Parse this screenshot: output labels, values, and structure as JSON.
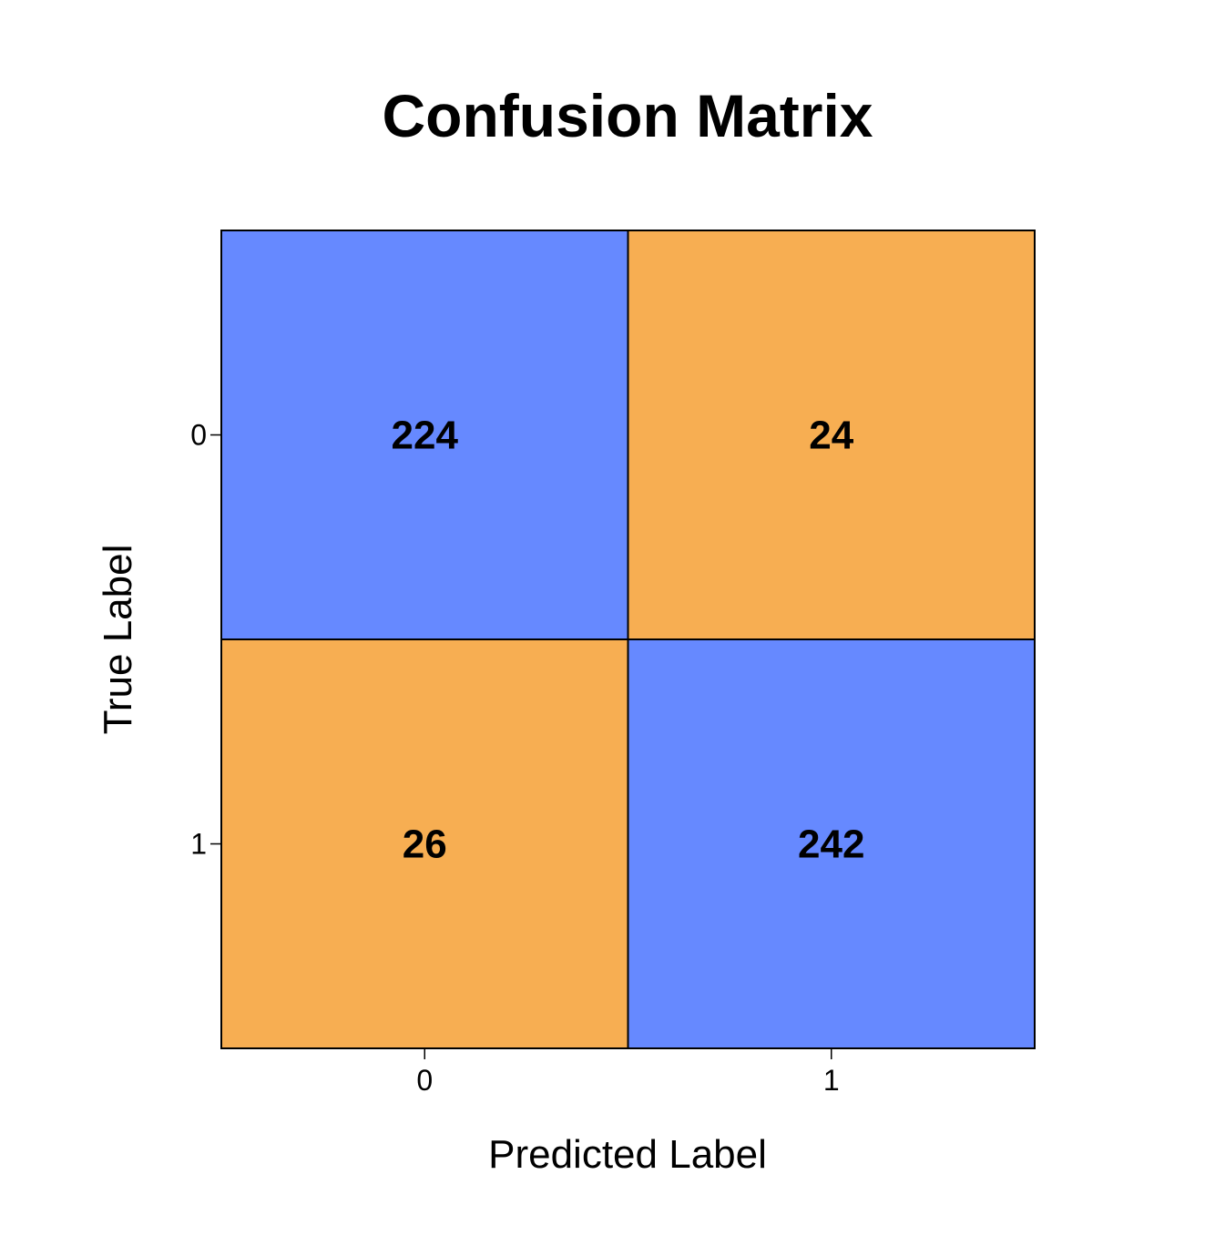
{
  "chart_data": {
    "type": "heatmap",
    "title": "Confusion Matrix",
    "xlabel": "Predicted Label",
    "ylabel": "True Label",
    "x_categories": [
      "0",
      "1"
    ],
    "y_categories": [
      "0",
      "1"
    ],
    "values": [
      [
        224,
        24
      ],
      [
        26,
        242
      ]
    ],
    "colors": {
      "correct": "#6689FF",
      "incorrect": "#F7AE52",
      "border": "#000000"
    },
    "grid": true,
    "legend": "none"
  }
}
